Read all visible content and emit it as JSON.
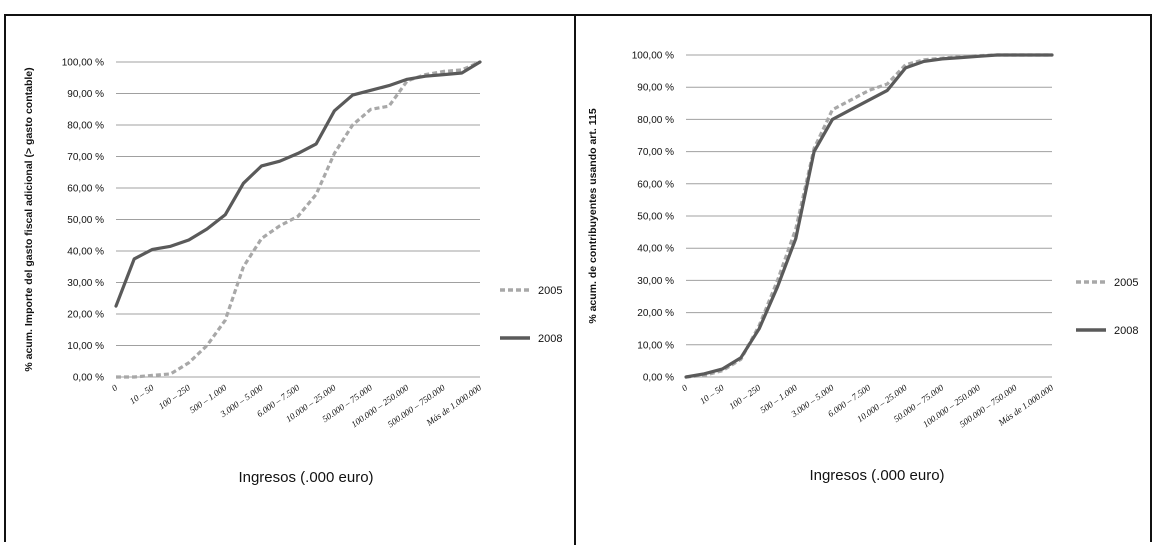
{
  "chart_data": [
    {
      "type": "line",
      "ylabel": "% acum. Importe del gasto fiscal adicional (> gasto contable)",
      "xlabel": "Ingresos (.000 euro)",
      "ylim": [
        0,
        100
      ],
      "yticks": [
        "0,00 %",
        "10,00 %",
        "20,00 %",
        "30,00 %",
        "40,00 %",
        "50,00 %",
        "60,00 %",
        "70,00 %",
        "80,00 %",
        "90,00 %",
        "100,00 %"
      ],
      "xtick_labels": [
        "0",
        "10 – 50",
        "100 – 250",
        "500 – 1.000",
        "3.000 – 5.000",
        "6.000 – 7.500",
        "10.000 – 25.000",
        "50.000 – 75.000",
        "100.000 – 250.000",
        "500.000 – 750.000",
        "Más de 1.000.000"
      ],
      "grid": true,
      "legend_position": "right",
      "series": [
        {
          "name": "2005",
          "style": "dashed",
          "color": "#a8a8a8",
          "x": [
            0,
            0.5,
            1,
            1.5,
            2,
            2.5,
            3,
            3.5,
            4,
            4.5,
            5,
            5.5,
            6,
            6.5,
            7,
            7.5,
            8,
            8.5,
            9,
            9.5,
            10
          ],
          "values": [
            0,
            0,
            0.5,
            1,
            4.5,
            10,
            18,
            35,
            44,
            48,
            51,
            58,
            71,
            80,
            85,
            86,
            94,
            96,
            97,
            97.5,
            100
          ]
        },
        {
          "name": "2008",
          "style": "solid",
          "color": "#5a5a5a",
          "x": [
            0,
            0.5,
            1,
            1.5,
            2,
            2.5,
            3,
            3.5,
            4,
            4.5,
            5,
            5.5,
            6,
            6.5,
            7,
            7.5,
            8,
            8.5,
            9,
            9.5,
            10
          ],
          "values": [
            22.5,
            37.5,
            40.5,
            41.5,
            43.5,
            47,
            51.5,
            61.5,
            67,
            68.5,
            71,
            74,
            84.5,
            89.5,
            91,
            92.5,
            94.5,
            95.5,
            96,
            96.5,
            100
          ]
        }
      ]
    },
    {
      "type": "line",
      "ylabel": "% acum. de contribuyentes usando art. 115",
      "xlabel": "Ingresos (.000 euro)",
      "ylim": [
        0,
        100
      ],
      "yticks": [
        "0,00 %",
        "10,00 %",
        "20,00 %",
        "30,00 %",
        "40,00 %",
        "50,00 %",
        "60,00 %",
        "70,00 %",
        "80,00 %",
        "90,00 %",
        "100,00 %"
      ],
      "xtick_labels": [
        "0",
        "10 – 50",
        "100 – 250",
        "500 – 1.000",
        "3.000 – 5.000",
        "6.000 – 7.500",
        "10.000 – 25.000",
        "50.000 – 75.000",
        "100.000 – 250.000",
        "500.000 – 750.000",
        "Más de 1.000.000"
      ],
      "grid": true,
      "legend_position": "right",
      "series": [
        {
          "name": "2005",
          "style": "dashed",
          "color": "#a8a8a8",
          "x": [
            0,
            0.5,
            1,
            1.5,
            2,
            2.5,
            3,
            3.5,
            4,
            4.5,
            5,
            5.5,
            6,
            6.5,
            7,
            7.5,
            8,
            8.5,
            9,
            9.5,
            10
          ],
          "values": [
            0,
            0.5,
            2,
            5.5,
            16,
            30,
            46,
            71,
            83,
            86,
            89,
            91,
            97,
            98.5,
            99,
            99.5,
            99.8,
            100,
            100,
            100,
            100
          ]
        },
        {
          "name": "2008",
          "style": "solid",
          "color": "#5a5a5a",
          "x": [
            0,
            0.5,
            1,
            1.5,
            2,
            2.5,
            3,
            3.5,
            4,
            4.5,
            5,
            5.5,
            6,
            6.5,
            7,
            7.5,
            8,
            8.5,
            9,
            9.5,
            10
          ],
          "values": [
            0,
            1,
            2.5,
            6,
            15,
            28,
            43,
            70,
            80,
            83,
            86,
            89,
            96,
            98,
            98.8,
            99.2,
            99.6,
            100,
            100,
            100,
            100
          ]
        }
      ]
    }
  ]
}
